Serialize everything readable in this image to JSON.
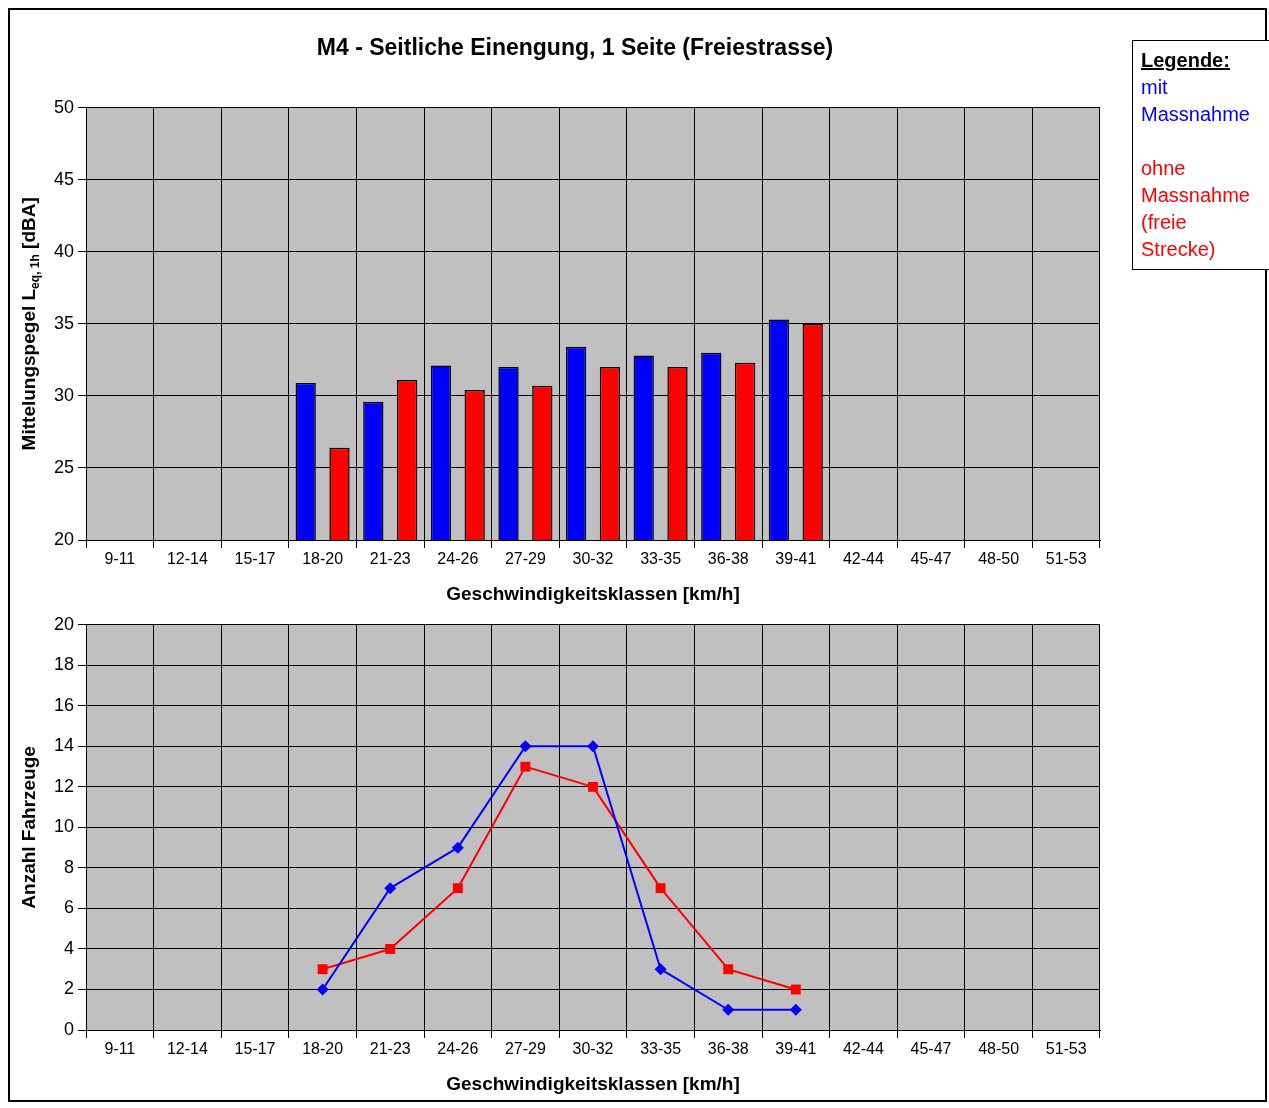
{
  "chart_data": [
    {
      "type": "bar",
      "title": "M4 - Seitliche Einengung, 1 Seite (Freiestrasse)",
      "xlabel": "Geschwindigkeitsklassen [km/h]",
      "ylabel": "Mittelungspegel L$_{eq, 1h}$ [dBA]",
      "legend_title": "Legende:",
      "legend": "right",
      "grid": true,
      "categories": [
        "9-11",
        "12-14",
        "15-17",
        "18-20",
        "21-23",
        "24-26",
        "27-29",
        "30-32",
        "33-35",
        "36-38",
        "39-41",
        "42-44",
        "45-47",
        "48-50",
        "51-53"
      ],
      "ylim": [
        20,
        50
      ],
      "yticks": [
        20,
        25,
        30,
        35,
        40,
        45,
        50
      ],
      "series": [
        {
          "name": "mit Massnahme",
          "color": "#0000ff",
          "values": [
            null,
            null,
            null,
            30.9,
            29.6,
            32.1,
            32.0,
            33.4,
            32.8,
            33.0,
            35.3,
            null,
            null,
            null,
            null
          ]
        },
        {
          "name": "ohne Massnahme (freie Strecke)",
          "color": "#ff0000",
          "values": [
            null,
            null,
            null,
            26.4,
            31.1,
            30.4,
            30.7,
            32.0,
            32.0,
            32.3,
            35.0,
            null,
            null,
            null,
            null
          ]
        }
      ]
    },
    {
      "type": "line",
      "xlabel": "Geschwindigkeitsklassen [km/h]",
      "ylabel": "Anzahl Fahrzeuge",
      "grid": true,
      "categories": [
        "9-11",
        "12-14",
        "15-17",
        "18-20",
        "21-23",
        "24-26",
        "27-29",
        "30-32",
        "33-35",
        "36-38",
        "39-41",
        "42-44",
        "45-47",
        "48-50",
        "51-53"
      ],
      "ylim": [
        0,
        20
      ],
      "yticks": [
        0,
        2,
        4,
        6,
        8,
        10,
        12,
        14,
        16,
        18,
        20
      ],
      "series": [
        {
          "color": "#0000ff",
          "marker": "diamond",
          "values": [
            null,
            null,
            null,
            2,
            7,
            9,
            14,
            14,
            3,
            1,
            1,
            null,
            null,
            null,
            null
          ]
        },
        {
          "color": "#ff0000",
          "marker": "square",
          "values": [
            null,
            null,
            null,
            3,
            4,
            7,
            13,
            12,
            7,
            3,
            2,
            null,
            null,
            null,
            null
          ]
        }
      ]
    }
  ]
}
